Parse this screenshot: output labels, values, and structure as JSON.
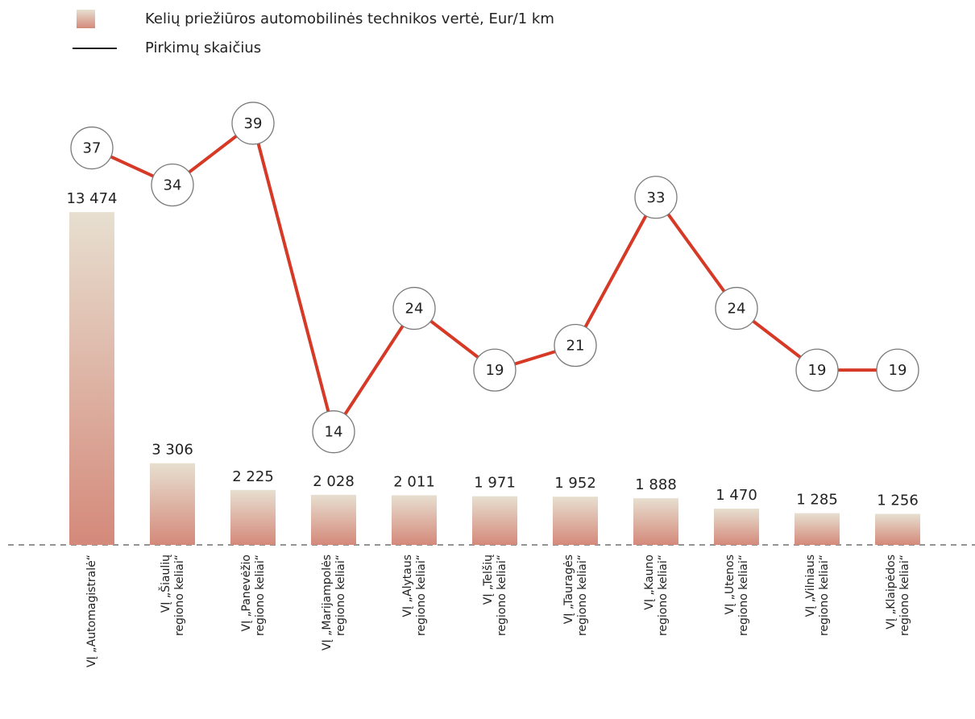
{
  "chart_data": {
    "type": "bar-line",
    "categories": [
      "VĮ „Automagistralė“",
      "VĮ „Šiaulių regiono keliai“",
      "VĮ „Panevėžio regiono keliai“",
      "VĮ „Marijampolės regiono keliai“",
      "VĮ „Alytaus regiono keliai“",
      "VĮ „Telšių regiono keliai“",
      "VĮ „Tauragės regiono keliai“",
      "VĮ „Kauno regiono keliai“",
      "VĮ „Utenos regiono keliai“",
      "VĮ „Vilniaus regiono keliai“",
      "VĮ „Klaipėdos regiono keliai“"
    ],
    "series": [
      {
        "name": "Kelių priežiūros automobilinės technikos vertė, Eur/1 km",
        "type": "bar",
        "color": "#d4897a",
        "values": [
          13474,
          3306,
          2225,
          2028,
          2011,
          1971,
          1952,
          1888,
          1470,
          1285,
          1256
        ],
        "value_labels": [
          "13 474",
          "3 306",
          "2 225",
          "2 028",
          "2 011",
          "1 971",
          "1 952",
          "1 888",
          "1 470",
          "1 285",
          "1 256"
        ]
      },
      {
        "name": "Pirkimų skaičius",
        "type": "line",
        "axis": "y2",
        "color": "#d63a26",
        "values": [
          37,
          34,
          39,
          14,
          24,
          19,
          21,
          33,
          24,
          19,
          19
        ]
      }
    ],
    "ylim": [
      0,
      14000
    ],
    "y2lim": [
      0,
      42
    ]
  }
}
